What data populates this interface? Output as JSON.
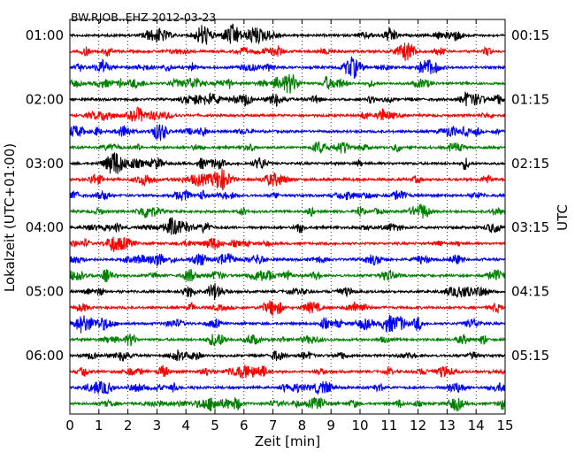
{
  "chart_data": {
    "type": "line",
    "title": "BW.RJOB..EHZ 2012-03-23",
    "xlabel": "Zeit  [min]",
    "ylabel_left": "Lokalzeit (UTC+01:00)",
    "ylabel_right": "UTC",
    "xlim": [
      0,
      15
    ],
    "x_ticks": [
      "0",
      "1",
      "2",
      "3",
      "4",
      "5",
      "6",
      "7",
      "8",
      "9",
      "10",
      "11",
      "12",
      "13",
      "14",
      "15"
    ],
    "left_time_labels": [
      "01:00",
      "02:00",
      "03:00",
      "04:00",
      "05:00",
      "06:00"
    ],
    "right_time_labels": [
      "00:15",
      "01:15",
      "02:15",
      "03:15",
      "04:15",
      "05:15"
    ],
    "trace_count": 24,
    "traces_per_label": 4,
    "minutes_per_trace": 15,
    "grid": true,
    "colors": [
      "#000000",
      "#ff0000",
      "#0000ff",
      "#008000"
    ]
  }
}
